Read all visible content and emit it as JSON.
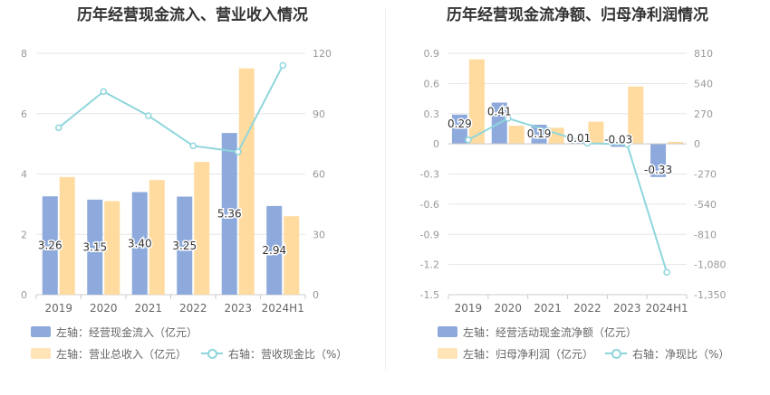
{
  "chart_data": [
    {
      "type": "bar",
      "title": "历年经营现金流入、营业收入情况",
      "categories": [
        "2019",
        "2020",
        "2021",
        "2022",
        "2023",
        "2024H1"
      ],
      "left_axis": {
        "ylim": [
          0,
          8
        ],
        "ticks": [
          "0",
          "2",
          "4",
          "6",
          "8"
        ]
      },
      "right_axis": {
        "ylim": [
          0,
          120
        ],
        "ticks": [
          "0",
          "30",
          "60",
          "90",
          "120"
        ]
      },
      "series": [
        {
          "name": "左轴：经营现金流入（亿元）",
          "kind": "bar",
          "axis": "left",
          "color": "#8eaadc",
          "values": [
            3.26,
            3.15,
            3.4,
            3.25,
            5.36,
            2.94
          ],
          "labels": [
            "3.26",
            "3.15",
            "3.40",
            "3.25",
            "5.36",
            "2.94"
          ]
        },
        {
          "name": "左轴：营业总收入（亿元）",
          "kind": "bar",
          "axis": "left",
          "color": "#ffd99a",
          "values": [
            3.9,
            3.1,
            3.8,
            4.4,
            7.5,
            2.6
          ]
        },
        {
          "name": "右轴：营收现金比（%）",
          "kind": "line",
          "axis": "right",
          "color": "#8fd6dc",
          "values": [
            83,
            101,
            89,
            74,
            71,
            114
          ]
        }
      ]
    },
    {
      "type": "bar",
      "title": "历年经营现金流净额、归母净利润情况",
      "categories": [
        "2019",
        "2020",
        "2021",
        "2022",
        "2023",
        "2024H1"
      ],
      "left_axis": {
        "ylim": [
          -1.5,
          0.9
        ],
        "ticks": [
          "-1.5",
          "-1.2",
          "-0.9",
          "-0.6",
          "-0.3",
          "0",
          "0.3",
          "0.6",
          "0.9"
        ]
      },
      "right_axis": {
        "ylim": [
          -1350,
          810
        ],
        "ticks": [
          "-1,350",
          "-1,080",
          "-810",
          "-540",
          "-270",
          "0",
          "270",
          "540",
          "810"
        ]
      },
      "series": [
        {
          "name": "左轴：经营活动现金流净额（亿元）",
          "kind": "bar",
          "axis": "left",
          "color": "#8eaadc",
          "values": [
            0.29,
            0.41,
            0.19,
            0.01,
            -0.03,
            -0.33
          ],
          "labels": [
            "0.29",
            "0.41",
            "0.19",
            "0.01",
            "-0.03",
            "-0.33"
          ]
        },
        {
          "name": "左轴：归母净利润（亿元）",
          "kind": "bar",
          "axis": "left",
          "color": "#ffd99a",
          "values": [
            0.84,
            0.18,
            0.16,
            0.22,
            0.57,
            0.02
          ]
        },
        {
          "name": "右轴：净现比（%）",
          "kind": "line",
          "axis": "right",
          "color": "#8fd6dc",
          "values": [
            35,
            228,
            119,
            5,
            -5,
            -1150
          ]
        }
      ]
    }
  ]
}
